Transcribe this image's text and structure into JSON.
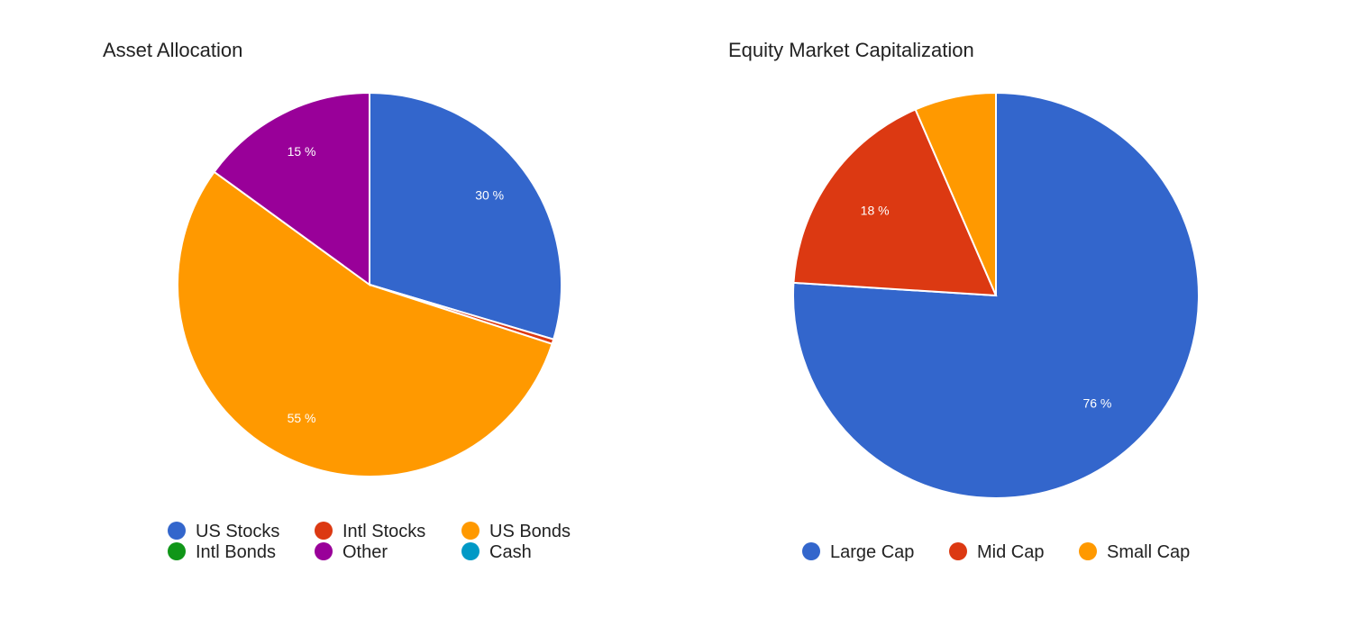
{
  "chart_data": [
    {
      "type": "pie",
      "title": "Asset Allocation",
      "categories": [
        "US Stocks",
        "Intl Stocks",
        "US Bonds",
        "Intl Bonds",
        "Other",
        "Cash"
      ],
      "values": [
        29.6,
        0.4,
        55.0,
        0.0,
        15.0,
        0.0
      ],
      "colors": [
        "#3366cc",
        "#dc3912",
        "#ff9900",
        "#109618",
        "#990099",
        "#0099c6"
      ],
      "slice_labels": [
        "30 %",
        "",
        "55 %",
        "",
        "15 %",
        ""
      ],
      "legend_position": "bottom",
      "direction": "clockwise from top"
    },
    {
      "type": "pie",
      "title": "Equity Market Capitalization",
      "categories": [
        "Large Cap",
        "Mid Cap",
        "Small Cap"
      ],
      "values": [
        76.0,
        17.5,
        6.5
      ],
      "colors": [
        "#3366cc",
        "#dc3912",
        "#ff9900"
      ],
      "slice_labels": [
        "76 %",
        "18 %",
        ""
      ],
      "legend_position": "bottom",
      "direction": "clockwise from top"
    }
  ]
}
